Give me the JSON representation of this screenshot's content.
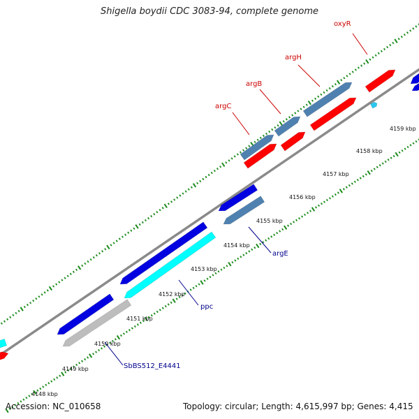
{
  "title": "Shigella boydii CDC 3083-94, complete genome",
  "accession": "Accession: NC_010658",
  "summary": "Topology: circular; Length: 4,615,997 bp; Genes: 4,415",
  "colors": {
    "axis": "#8a8a8a",
    "tick": "#1b8a1b",
    "forward_label": "#cc0000",
    "reverse_label": "#00008b"
  },
  "scale_labels": [
    "4148 kbp",
    "4149 kbp",
    "4150 kbp",
    "4151 kbp",
    "4152 kbp",
    "4153 kbp",
    "4154 kbp",
    "4155 kbp",
    "4156 kbp",
    "4157 kbp",
    "4158 kbp",
    "4159 kbp"
  ],
  "gene_labels": [
    {
      "text": "oxyR",
      "strand": "forward"
    },
    {
      "text": "argH",
      "strand": "forward"
    },
    {
      "text": "argB",
      "strand": "forward"
    },
    {
      "text": "argC",
      "strand": "forward"
    },
    {
      "text": "argE",
      "strand": "reverse"
    },
    {
      "text": "ppc",
      "strand": "reverse"
    },
    {
      "text": "SbBS512_E4441",
      "strand": "reverse"
    }
  ],
  "features": [
    {
      "track": "forward-cds",
      "color": "#ff0000",
      "direction": "forward"
    },
    {
      "track": "forward-cds",
      "color": "#ff0000",
      "direction": "forward"
    },
    {
      "track": "forward-cds",
      "color": "#ff0000",
      "direction": "forward"
    },
    {
      "track": "forward-cds",
      "color": "#ff0000",
      "direction": "forward"
    },
    {
      "track": "forward-cds",
      "color": "#ff0000",
      "direction": "forward"
    },
    {
      "track": "forward-gene",
      "color": "#4f81b0",
      "direction": "forward"
    },
    {
      "track": "forward-gene",
      "color": "#4f81b0",
      "direction": "forward"
    },
    {
      "track": "forward-gene",
      "color": "#4f81b0",
      "direction": "forward"
    },
    {
      "track": "forward-misc",
      "color": "#29c8f0",
      "direction": "forward"
    },
    {
      "track": "reverse-cds",
      "color": "#0000e0",
      "direction": "reverse"
    },
    {
      "track": "reverse-cds",
      "color": "#0000e0",
      "direction": "reverse"
    },
    {
      "track": "reverse-cds",
      "color": "#0000e0",
      "direction": "reverse"
    },
    {
      "track": "reverse-cds",
      "color": "#0000e0",
      "direction": "reverse"
    },
    {
      "track": "reverse-gene",
      "color": "#4f81b0",
      "direction": "reverse"
    },
    {
      "track": "reverse-misc",
      "color": "#00ffff",
      "direction": "reverse"
    },
    {
      "track": "reverse-misc",
      "color": "#00ffff",
      "direction": "reverse"
    },
    {
      "track": "reverse-pseudo",
      "color": "#bdbdbd",
      "direction": "reverse"
    },
    {
      "track": "reverse-cds",
      "color": "#0000e0",
      "direction": "reverse"
    }
  ]
}
